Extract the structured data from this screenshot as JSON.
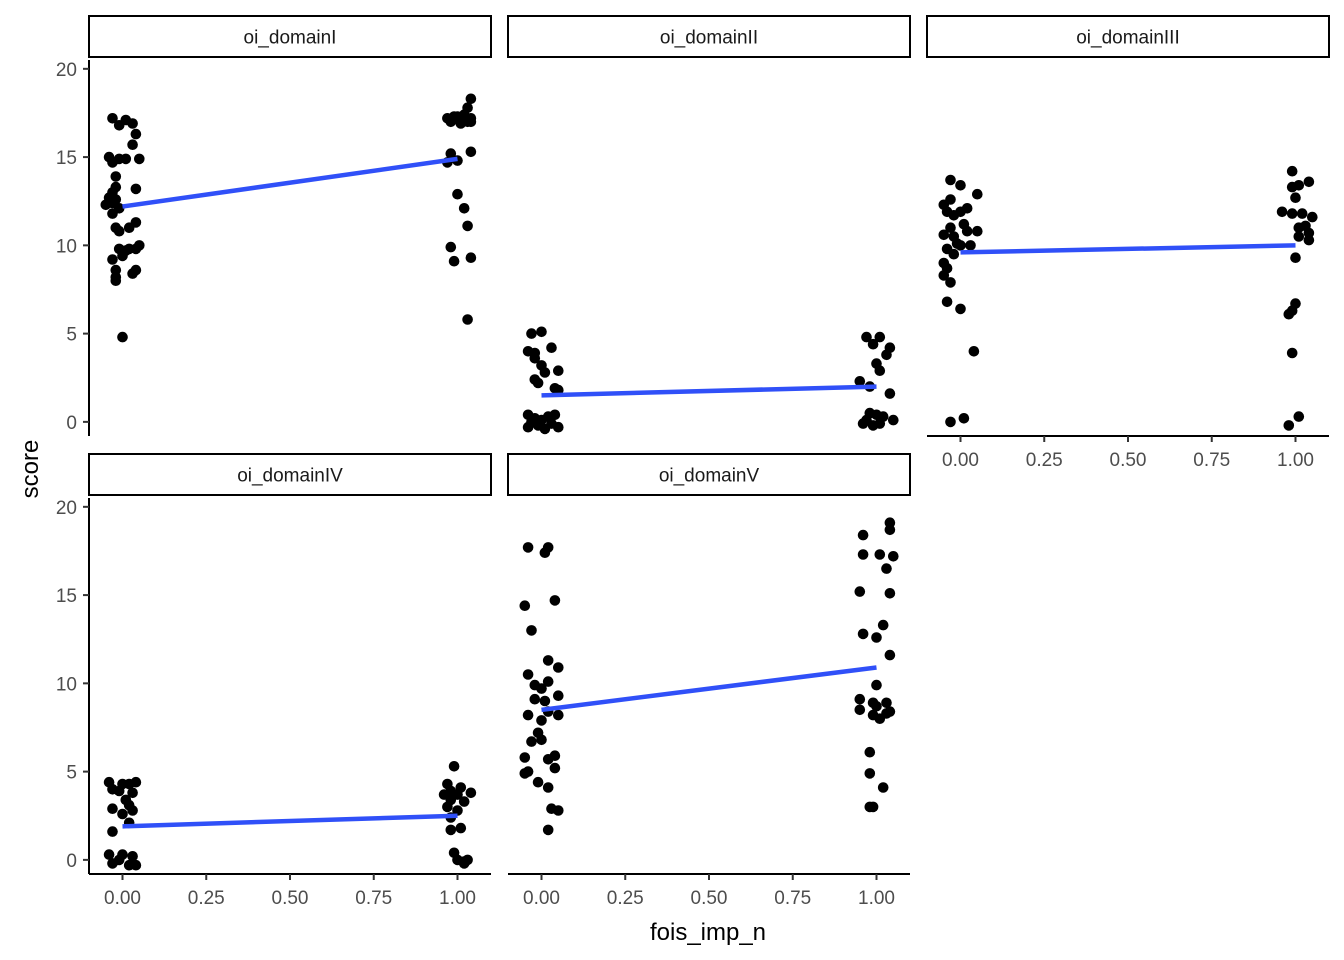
{
  "chart_data": {
    "type": "scatter",
    "subtype": "faceted scatter with linear fit (jittered points)",
    "xlabel": "fois_imp_n",
    "ylabel": "score",
    "xlim": [
      -0.1,
      1.1
    ],
    "ylim": [
      -0.8,
      20.5
    ],
    "x_ticks": [
      0,
      0.25,
      0.5,
      0.75,
      1
    ],
    "x_tick_labels": [
      "0.00",
      "0.25",
      "0.50",
      "0.75",
      "1.00"
    ],
    "y_ticks": [
      0,
      5,
      10,
      15,
      20
    ],
    "y_tick_labels": [
      "0",
      "5",
      "10",
      "15",
      "20"
    ],
    "grid": false,
    "point_color": "#000000",
    "fit_color": "#3050F8",
    "facets": [
      {
        "name": "oi_domainI",
        "fit": {
          "x": [
            0,
            1
          ],
          "y": [
            12.2,
            14.9
          ]
        },
        "points": [
          [
            -0.03,
            17.2
          ],
          [
            0.01,
            17.1
          ],
          [
            0.03,
            16.9
          ],
          [
            -0.01,
            16.8
          ],
          [
            0.04,
            16.3
          ],
          [
            0.03,
            15.7
          ],
          [
            -0.04,
            15.0
          ],
          [
            -0.01,
            14.9
          ],
          [
            0.01,
            14.9
          ],
          [
            0.05,
            14.9
          ],
          [
            -0.03,
            14.7
          ],
          [
            -0.02,
            13.9
          ],
          [
            0.04,
            13.2
          ],
          [
            -0.02,
            13.3
          ],
          [
            -0.03,
            13.0
          ],
          [
            -0.04,
            12.7
          ],
          [
            -0.02,
            12.6
          ],
          [
            -0.03,
            12.4
          ],
          [
            -0.05,
            12.3
          ],
          [
            -0.01,
            12.1
          ],
          [
            -0.03,
            11.8
          ],
          [
            0.04,
            11.3
          ],
          [
            0.02,
            11.0
          ],
          [
            -0.02,
            11.0
          ],
          [
            -0.01,
            10.8
          ],
          [
            0.05,
            10.0
          ],
          [
            0.02,
            9.8
          ],
          [
            0.04,
            9.8
          ],
          [
            0.01,
            9.7
          ],
          [
            -0.01,
            9.8
          ],
          [
            0.0,
            9.4
          ],
          [
            -0.03,
            9.2
          ],
          [
            0.04,
            8.6
          ],
          [
            0.03,
            8.4
          ],
          [
            -0.02,
            8.6
          ],
          [
            -0.02,
            8.2
          ],
          [
            -0.02,
            8.0
          ],
          [
            0.0,
            4.8
          ],
          [
            0.97,
            17.2
          ],
          [
            0.99,
            17.3
          ],
          [
            1.0,
            17.3
          ],
          [
            1.02,
            17.2
          ],
          [
            1.04,
            17.2
          ],
          [
            1.04,
            18.3
          ],
          [
            1.03,
            17.8
          ],
          [
            1.02,
            17.4
          ],
          [
            0.98,
            17.0
          ],
          [
            1.01,
            16.9
          ],
          [
            1.03,
            17.0
          ],
          [
            1.04,
            17.0
          ],
          [
            1.04,
            15.3
          ],
          [
            0.98,
            15.2
          ],
          [
            1.0,
            14.8
          ],
          [
            0.97,
            14.7
          ],
          [
            1.0,
            12.9
          ],
          [
            1.02,
            12.1
          ],
          [
            1.03,
            11.1
          ],
          [
            0.98,
            9.9
          ],
          [
            1.04,
            9.3
          ],
          [
            0.99,
            9.1
          ],
          [
            1.03,
            5.8
          ]
        ]
      },
      {
        "name": "oi_domainII",
        "fit": {
          "x": [
            0,
            1
          ],
          "y": [
            1.5,
            2.0
          ]
        },
        "points": [
          [
            -0.03,
            5.0
          ],
          [
            0.0,
            5.1
          ],
          [
            0.03,
            4.2
          ],
          [
            -0.04,
            4.0
          ],
          [
            -0.02,
            3.9
          ],
          [
            -0.02,
            3.6
          ],
          [
            0.0,
            3.2
          ],
          [
            0.05,
            2.9
          ],
          [
            0.01,
            2.8
          ],
          [
            -0.02,
            2.4
          ],
          [
            -0.01,
            2.2
          ],
          [
            0.04,
            1.9
          ],
          [
            0.05,
            1.8
          ],
          [
            -0.04,
            0.4
          ],
          [
            -0.02,
            0.2
          ],
          [
            0.02,
            0.3
          ],
          [
            0.04,
            0.4
          ],
          [
            -0.03,
            0.0
          ],
          [
            0.0,
            0.1
          ],
          [
            0.03,
            -0.1
          ],
          [
            0.05,
            -0.3
          ],
          [
            -0.01,
            -0.2
          ],
          [
            -0.04,
            -0.3
          ],
          [
            0.01,
            -0.4
          ],
          [
            0.97,
            4.8
          ],
          [
            1.01,
            4.8
          ],
          [
            1.04,
            4.2
          ],
          [
            0.99,
            4.4
          ],
          [
            1.03,
            3.8
          ],
          [
            1.0,
            3.3
          ],
          [
            1.01,
            2.9
          ],
          [
            0.95,
            2.3
          ],
          [
            0.98,
            2.0
          ],
          [
            1.04,
            1.6
          ],
          [
            0.98,
            0.5
          ],
          [
            1.0,
            0.4
          ],
          [
            1.02,
            0.3
          ],
          [
            0.97,
            0.1
          ],
          [
            1.01,
            -0.1
          ],
          [
            1.05,
            0.1
          ],
          [
            0.99,
            -0.2
          ],
          [
            0.96,
            -0.1
          ]
        ]
      },
      {
        "name": "oi_domainIII",
        "fit": {
          "x": [
            0,
            1
          ],
          "y": [
            9.6,
            10.0
          ]
        },
        "points": [
          [
            -0.03,
            13.7
          ],
          [
            0.0,
            13.4
          ],
          [
            0.05,
            12.9
          ],
          [
            -0.03,
            12.6
          ],
          [
            -0.05,
            12.3
          ],
          [
            0.02,
            12.1
          ],
          [
            -0.04,
            11.9
          ],
          [
            -0.02,
            11.7
          ],
          [
            0.0,
            11.9
          ],
          [
            0.01,
            11.2
          ],
          [
            -0.03,
            11.0
          ],
          [
            0.05,
            10.8
          ],
          [
            0.02,
            10.8
          ],
          [
            -0.05,
            10.6
          ],
          [
            -0.02,
            10.5
          ],
          [
            -0.01,
            10.1
          ],
          [
            0.03,
            10.0
          ],
          [
            0.0,
            10.0
          ],
          [
            -0.04,
            9.8
          ],
          [
            -0.02,
            9.5
          ],
          [
            -0.05,
            9.0
          ],
          [
            -0.04,
            8.7
          ],
          [
            -0.05,
            8.3
          ],
          [
            -0.03,
            7.9
          ],
          [
            -0.04,
            6.8
          ],
          [
            0.0,
            6.4
          ],
          [
            0.04,
            4.0
          ],
          [
            0.01,
            0.2
          ],
          [
            -0.03,
            0.0
          ],
          [
            0.99,
            14.2
          ],
          [
            1.01,
            13.4
          ],
          [
            0.99,
            13.3
          ],
          [
            1.04,
            13.6
          ],
          [
            1.0,
            12.7
          ],
          [
            0.96,
            11.9
          ],
          [
            1.02,
            11.8
          ],
          [
            0.99,
            11.8
          ],
          [
            1.05,
            11.6
          ],
          [
            1.03,
            11.1
          ],
          [
            1.01,
            11.0
          ],
          [
            1.04,
            10.7
          ],
          [
            1.01,
            10.5
          ],
          [
            1.04,
            10.3
          ],
          [
            1.0,
            9.3
          ],
          [
            1.0,
            6.7
          ],
          [
            0.99,
            6.3
          ],
          [
            0.98,
            6.1
          ],
          [
            0.99,
            3.9
          ],
          [
            1.01,
            0.3
          ],
          [
            0.98,
            -0.2
          ]
        ]
      },
      {
        "name": "oi_domainIV",
        "fit": {
          "x": [
            0,
            1
          ],
          "y": [
            1.9,
            2.5
          ]
        },
        "points": [
          [
            -0.04,
            4.4
          ],
          [
            0.0,
            4.3
          ],
          [
            0.02,
            4.3
          ],
          [
            0.04,
            4.4
          ],
          [
            -0.03,
            4.0
          ],
          [
            -0.01,
            3.9
          ],
          [
            0.03,
            3.8
          ],
          [
            0.01,
            3.4
          ],
          [
            0.02,
            3.1
          ],
          [
            -0.03,
            2.9
          ],
          [
            0.03,
            2.8
          ],
          [
            0.0,
            2.6
          ],
          [
            0.02,
            2.1
          ],
          [
            -0.03,
            1.6
          ],
          [
            -0.04,
            0.3
          ],
          [
            0.0,
            0.3
          ],
          [
            0.03,
            0.2
          ],
          [
            -0.01,
            0.0
          ],
          [
            -0.03,
            -0.2
          ],
          [
            0.02,
            -0.3
          ],
          [
            0.04,
            -0.3
          ],
          [
            0.99,
            5.3
          ],
          [
            0.97,
            4.3
          ],
          [
            1.01,
            4.1
          ],
          [
            1.04,
            3.8
          ],
          [
            0.98,
            3.9
          ],
          [
            1.0,
            3.7
          ],
          [
            0.96,
            3.7
          ],
          [
            0.98,
            3.4
          ],
          [
            1.02,
            3.3
          ],
          [
            0.97,
            3.0
          ],
          [
            1.0,
            2.8
          ],
          [
            0.98,
            2.4
          ],
          [
            1.01,
            1.8
          ],
          [
            0.98,
            1.7
          ],
          [
            0.99,
            0.4
          ],
          [
            1.0,
            0.0
          ],
          [
            1.02,
            -0.1
          ],
          [
            1.03,
            0.0
          ],
          [
            1.02,
            -0.2
          ]
        ]
      },
      {
        "name": "oi_domainV",
        "fit": {
          "x": [
            0,
            1
          ],
          "y": [
            8.5,
            10.9
          ]
        },
        "points": [
          [
            -0.04,
            17.7
          ],
          [
            0.01,
            17.4
          ],
          [
            0.02,
            17.7
          ],
          [
            0.04,
            14.7
          ],
          [
            -0.05,
            14.4
          ],
          [
            -0.03,
            13.0
          ],
          [
            0.02,
            11.3
          ],
          [
            0.05,
            10.9
          ],
          [
            -0.04,
            10.5
          ],
          [
            0.02,
            10.1
          ],
          [
            -0.02,
            9.9
          ],
          [
            0.0,
            9.7
          ],
          [
            0.05,
            9.3
          ],
          [
            -0.02,
            9.1
          ],
          [
            0.01,
            9.0
          ],
          [
            0.02,
            8.4
          ],
          [
            0.05,
            8.2
          ],
          [
            -0.04,
            8.2
          ],
          [
            0.0,
            7.9
          ],
          [
            -0.01,
            7.2
          ],
          [
            0.0,
            6.8
          ],
          [
            -0.03,
            6.7
          ],
          [
            0.04,
            5.9
          ],
          [
            -0.05,
            5.8
          ],
          [
            0.02,
            5.7
          ],
          [
            0.04,
            5.2
          ],
          [
            -0.04,
            5.0
          ],
          [
            -0.05,
            4.9
          ],
          [
            -0.01,
            4.4
          ],
          [
            0.02,
            4.1
          ],
          [
            0.03,
            2.9
          ],
          [
            0.05,
            2.8
          ],
          [
            0.02,
            1.7
          ],
          [
            1.04,
            19.1
          ],
          [
            0.96,
            18.4
          ],
          [
            1.04,
            18.7
          ],
          [
            0.96,
            17.3
          ],
          [
            1.01,
            17.3
          ],
          [
            1.05,
            17.2
          ],
          [
            1.03,
            16.5
          ],
          [
            0.95,
            15.2
          ],
          [
            1.04,
            15.1
          ],
          [
            1.02,
            13.3
          ],
          [
            0.96,
            12.8
          ],
          [
            1.0,
            12.6
          ],
          [
            1.04,
            11.6
          ],
          [
            1.0,
            9.9
          ],
          [
            0.95,
            9.1
          ],
          [
            1.03,
            8.9
          ],
          [
            0.99,
            8.9
          ],
          [
            1.0,
            8.7
          ],
          [
            0.95,
            8.5
          ],
          [
            1.04,
            8.4
          ],
          [
            1.03,
            8.3
          ],
          [
            0.99,
            8.2
          ],
          [
            1.01,
            8.0
          ],
          [
            0.98,
            6.1
          ],
          [
            0.98,
            4.9
          ],
          [
            1.02,
            4.1
          ],
          [
            0.98,
            3.0
          ],
          [
            0.99,
            3.0
          ]
        ]
      }
    ]
  }
}
